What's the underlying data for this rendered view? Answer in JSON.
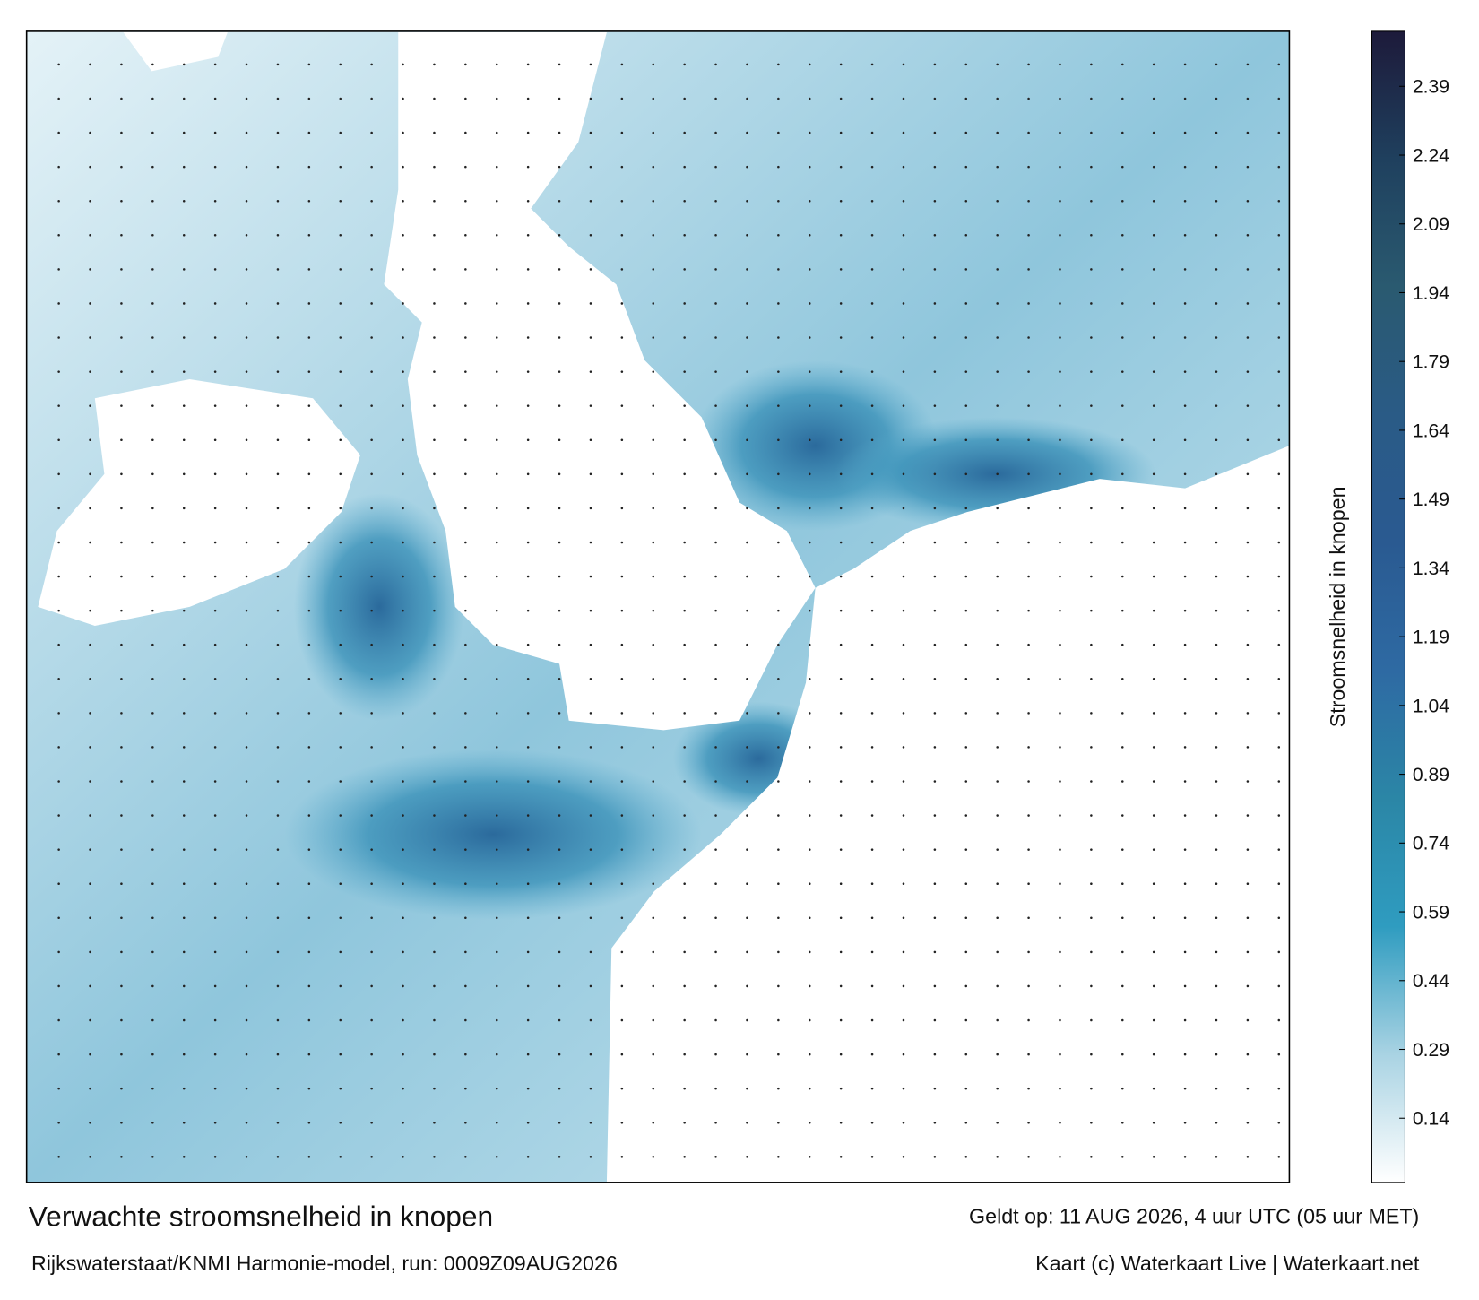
{
  "map": {
    "title": "Verwachte stroomsnelheid in knopen",
    "subtitle": "Rijkswaterstaat/KNMI Harmonie-model, run: 0009Z09AUG2026",
    "valid_time": "Geldt op: 11 AUG 2026, 4 uur UTC (05 uur MET)",
    "credit": "Kaart (c) Waterkaart Live | Waterkaart.net",
    "colorbar": {
      "label": "Stroomsnelheid in knopen",
      "lim": [
        0,
        2.51
      ],
      "ticks": [
        0.14,
        0.29,
        0.44,
        0.59,
        0.74,
        0.89,
        1.04,
        1.19,
        1.34,
        1.49,
        1.64,
        1.79,
        1.94,
        2.09,
        2.24,
        2.39
      ],
      "colors": [
        "#ffffff",
        "#a9d3e3",
        "#2f9cc0",
        "#2b86a6",
        "#2e6aa3",
        "#2a5a91",
        "#2a5b86",
        "#2a5a70",
        "#1f405e",
        "#1d1a3a"
      ]
    }
  }
}
